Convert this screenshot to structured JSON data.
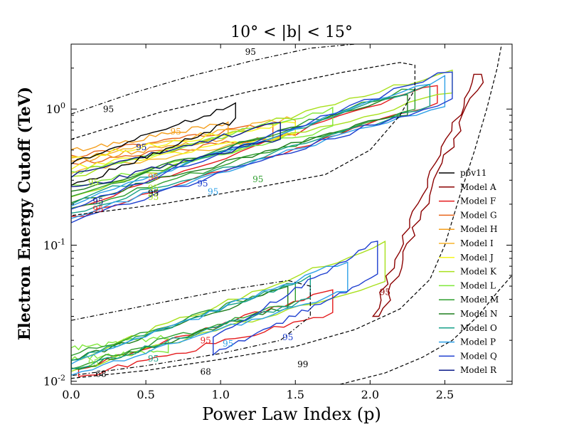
{
  "chart_data": {
    "type": "line",
    "subtype": "contour",
    "title": "10° < |b| < 15°",
    "xlabel": "Power Law Index (p)",
    "ylabel": "Electron Energy Cutoff (TeV)",
    "xlim": [
      0.0,
      2.95
    ],
    "ylim": [
      0.0095,
      3.0
    ],
    "yscale": "log",
    "grid": false,
    "legend_position": "right",
    "x_ticks": [
      "0.0",
      "0.5",
      "1.0",
      "1.5",
      "2.0",
      "2.5"
    ],
    "x_tick_values": [
      0.0,
      0.5,
      1.0,
      1.5,
      2.0,
      2.5
    ],
    "y_ticks": [
      "10^-2",
      "10^-1",
      "10^0"
    ],
    "y_tick_values": [
      0.01,
      0.1,
      1.0
    ],
    "series": [
      {
        "name": "p6v11",
        "color": "#000000"
      },
      {
        "name": "Model A",
        "color": "#8b0000"
      },
      {
        "name": "Model F",
        "color": "#e41a1c"
      },
      {
        "name": "Model G",
        "color": "#e8641b"
      },
      {
        "name": "Model H",
        "color": "#f59f1e"
      },
      {
        "name": "Model I",
        "color": "#f7b42d"
      },
      {
        "name": "Model J",
        "color": "#f5f51e"
      },
      {
        "name": "Model K",
        "color": "#a8e01c"
      },
      {
        "name": "Model L",
        "color": "#7fe83a"
      },
      {
        "name": "Model M",
        "color": "#2e9e2e"
      },
      {
        "name": "Model N",
        "color": "#1e7f1e"
      },
      {
        "name": "Model O",
        "color": "#17a08a"
      },
      {
        "name": "Model P",
        "color": "#2ea0e8"
      },
      {
        "name": "Model Q",
        "color": "#1e3fd0"
      },
      {
        "name": "Model R",
        "color": "#0b1a8a"
      }
    ],
    "reference_contours": [
      {
        "label": "95",
        "style": "dashdot",
        "points": [
          [
            0.0,
            0.92
          ],
          [
            0.4,
            1.3
          ],
          [
            0.8,
            1.75
          ],
          [
            1.2,
            2.25
          ],
          [
            1.6,
            2.8
          ],
          [
            1.9,
            3.0
          ]
        ]
      },
      {
        "label": "68",
        "style": "dashed",
        "points": [
          [
            0.0,
            0.6
          ],
          [
            0.6,
            0.95
          ],
          [
            1.2,
            1.35
          ],
          [
            1.8,
            1.85
          ],
          [
            2.2,
            2.2
          ],
          [
            2.3,
            2.1
          ],
          [
            2.3,
            1.4
          ],
          [
            2.2,
            0.9
          ],
          [
            2.0,
            0.5
          ],
          [
            1.7,
            0.33
          ],
          [
            1.2,
            0.26
          ],
          [
            0.6,
            0.2
          ],
          [
            0.0,
            0.165
          ]
        ]
      },
      {
        "label": "68",
        "style": "dashdot",
        "points": [
          [
            0.0,
            0.028
          ],
          [
            0.5,
            0.036
          ],
          [
            1.0,
            0.046
          ],
          [
            1.45,
            0.055
          ],
          [
            1.6,
            0.05
          ],
          [
            1.6,
            0.03
          ],
          [
            1.4,
            0.02
          ],
          [
            1.0,
            0.016
          ],
          [
            0.5,
            0.013
          ],
          [
            0.0,
            0.011
          ]
        ]
      },
      {
        "label": "95",
        "style": "dashed",
        "points": [
          [
            0.0,
            0.0105
          ],
          [
            0.5,
            0.012
          ],
          [
            1.0,
            0.0145
          ],
          [
            1.5,
            0.018
          ],
          [
            1.9,
            0.024
          ],
          [
            2.2,
            0.034
          ],
          [
            2.4,
            0.056
          ],
          [
            2.5,
            0.1
          ],
          [
            2.6,
            0.23
          ],
          [
            2.7,
            0.5
          ],
          [
            2.78,
            1.0
          ],
          [
            2.85,
            2.0
          ],
          [
            2.88,
            3.0
          ]
        ]
      },
      {
        "label": "99",
        "style": "dashed",
        "points": [
          [
            1.8,
            0.0095
          ],
          [
            2.1,
            0.0115
          ],
          [
            2.35,
            0.015
          ],
          [
            2.55,
            0.02
          ],
          [
            2.72,
            0.03
          ],
          [
            2.85,
            0.045
          ],
          [
            2.95,
            0.06
          ]
        ]
      }
    ],
    "annotations": [
      "95",
      "95",
      "95",
      "95",
      "95",
      "95",
      "95",
      "95",
      "95",
      "95",
      "95",
      "95",
      "95",
      "95",
      "95",
      "95",
      "95",
      "95",
      "95",
      "95",
      "68",
      "68",
      "99"
    ]
  }
}
